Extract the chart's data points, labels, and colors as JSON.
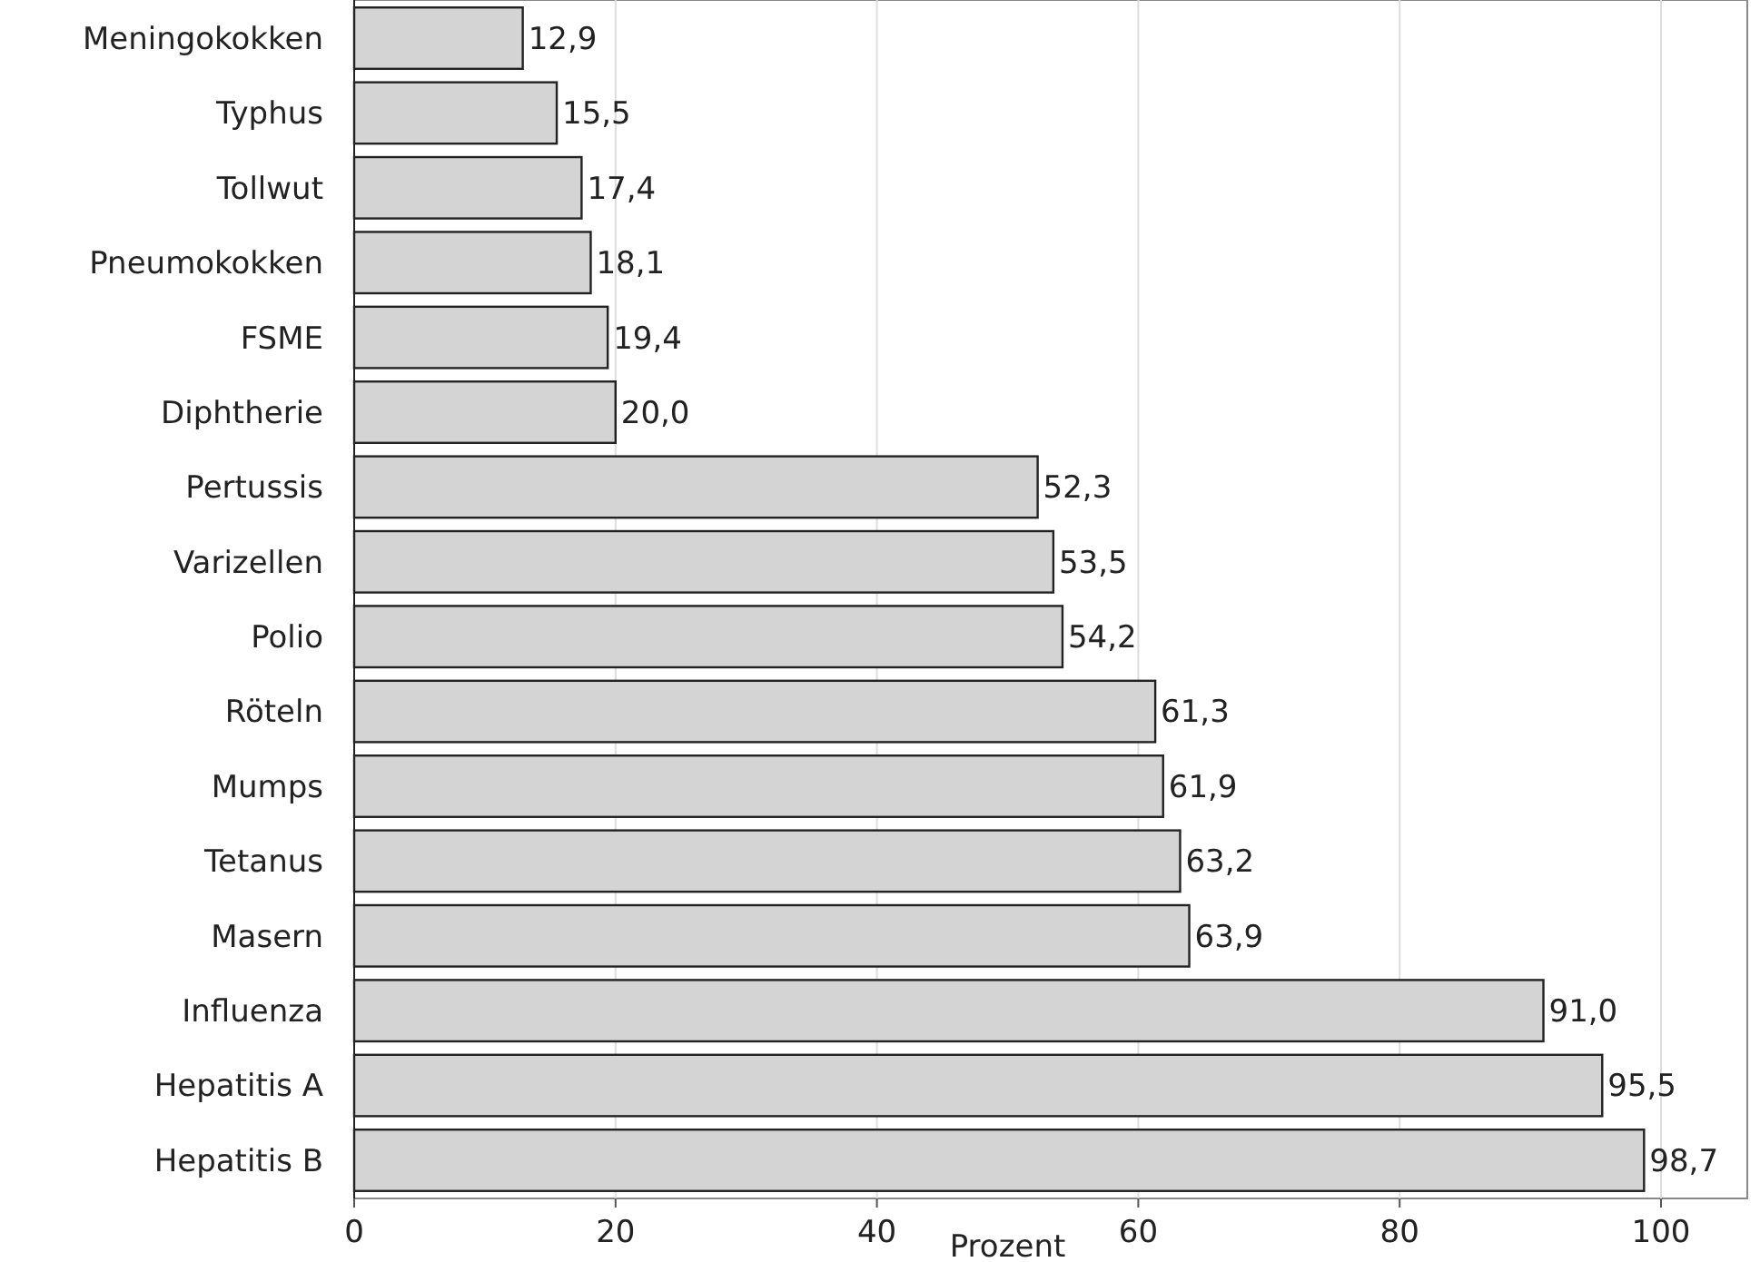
{
  "chart_data": {
    "type": "bar",
    "orientation": "horizontal",
    "xlabel": "Prozent",
    "categories": [
      "Meningokokken",
      "Typhus",
      "Tollwut",
      "Pneumokokken",
      "FSME",
      "Diphtherie",
      "Pertussis",
      "Varizellen",
      "Polio",
      "Röteln",
      "Mumps",
      "Tetanus",
      "Masern",
      "Influenza",
      "Hepatitis A",
      "Hepatitis B"
    ],
    "values": [
      12.9,
      15.5,
      17.4,
      18.1,
      19.4,
      20.0,
      52.3,
      53.5,
      54.2,
      61.3,
      61.9,
      63.2,
      63.9,
      91.0,
      95.5,
      98.7
    ],
    "value_labels": [
      "12,9",
      "15,5",
      "17,4",
      "18,1",
      "19,4",
      "20,0",
      "52,3",
      "53,5",
      "54,2",
      "61,3",
      "61,9",
      "63,2",
      "63,9",
      "91,0",
      "95,5",
      "98,7"
    ],
    "color": "#d4d4d4",
    "xlim": [
      0,
      106.6
    ],
    "xticks": [
      0,
      20,
      40,
      60,
      80,
      100
    ],
    "grid": "x"
  }
}
